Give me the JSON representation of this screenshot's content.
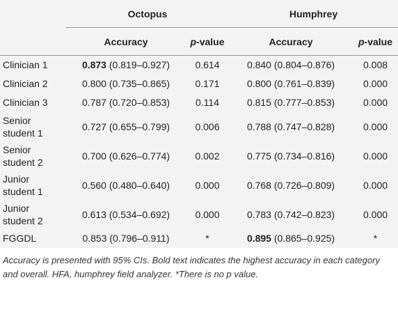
{
  "table": {
    "groups": [
      "Octopus",
      "Humphrey"
    ],
    "subheaders": [
      "Accuracy",
      "p",
      "-value",
      "Accuracy",
      "p",
      "-value"
    ],
    "rows": [
      {
        "label": "Clinician 1",
        "cells": [
          {
            "value": "0.873",
            "ci": "(0.819–0.927)",
            "bold": true
          },
          "0.614",
          {
            "value": "0.840",
            "ci": "(0.804–0.876)",
            "bold": false
          },
          "0.008"
        ]
      },
      {
        "label": "Clinician 2",
        "cells": [
          {
            "value": "0.800",
            "ci": "(0.735–0.865)",
            "bold": false
          },
          "0.171",
          {
            "value": "0.800",
            "ci": "(0.761–0.839)",
            "bold": false
          },
          "0.000"
        ]
      },
      {
        "label": "Clinician 3",
        "cells": [
          {
            "value": "0.787",
            "ci": "(0.720–0.853)",
            "bold": false
          },
          "0.114",
          {
            "value": "0.815",
            "ci": "(0.777–0.853)",
            "bold": false
          },
          "0.000"
        ]
      },
      {
        "label": "Senior student 1",
        "cells": [
          {
            "value": "0.727",
            "ci": "(0.655–0.799)",
            "bold": false
          },
          "0.006",
          {
            "value": "0.788",
            "ci": "(0.747–0.828)",
            "bold": false
          },
          "0.000"
        ]
      },
      {
        "label": "Senior student 2",
        "cells": [
          {
            "value": "0.700",
            "ci": "(0.626–0.774)",
            "bold": false
          },
          "0.002",
          {
            "value": "0.775",
            "ci": "(0.734–0.816)",
            "bold": false
          },
          "0.000"
        ]
      },
      {
        "label": "Junior student 1",
        "cells": [
          {
            "value": "0.560",
            "ci": "(0.480–0.640)",
            "bold": false
          },
          "0.000",
          {
            "value": "0.768",
            "ci": "(0.726–0.809)",
            "bold": false
          },
          "0.000"
        ]
      },
      {
        "label": "Junior student 2",
        "cells": [
          {
            "value": "0.613",
            "ci": "(0.534–0.692)",
            "bold": false
          },
          "0.000",
          {
            "value": "0.783",
            "ci": "(0.742–0.823)",
            "bold": false
          },
          "0.000"
        ]
      },
      {
        "label": "FGGDL",
        "cells": [
          {
            "value": "0.853",
            "ci": "(0.796–0.911)",
            "bold": false
          },
          "*",
          {
            "value": "0.895",
            "ci": "(0.865–0.925)",
            "bold": true
          },
          "*"
        ]
      }
    ],
    "footnote": "Accuracy is presented with 95% CIs. Bold text indicates the highest accuracy in each category and overall. HFA, humphrey field analyzer. *There is no p value."
  }
}
